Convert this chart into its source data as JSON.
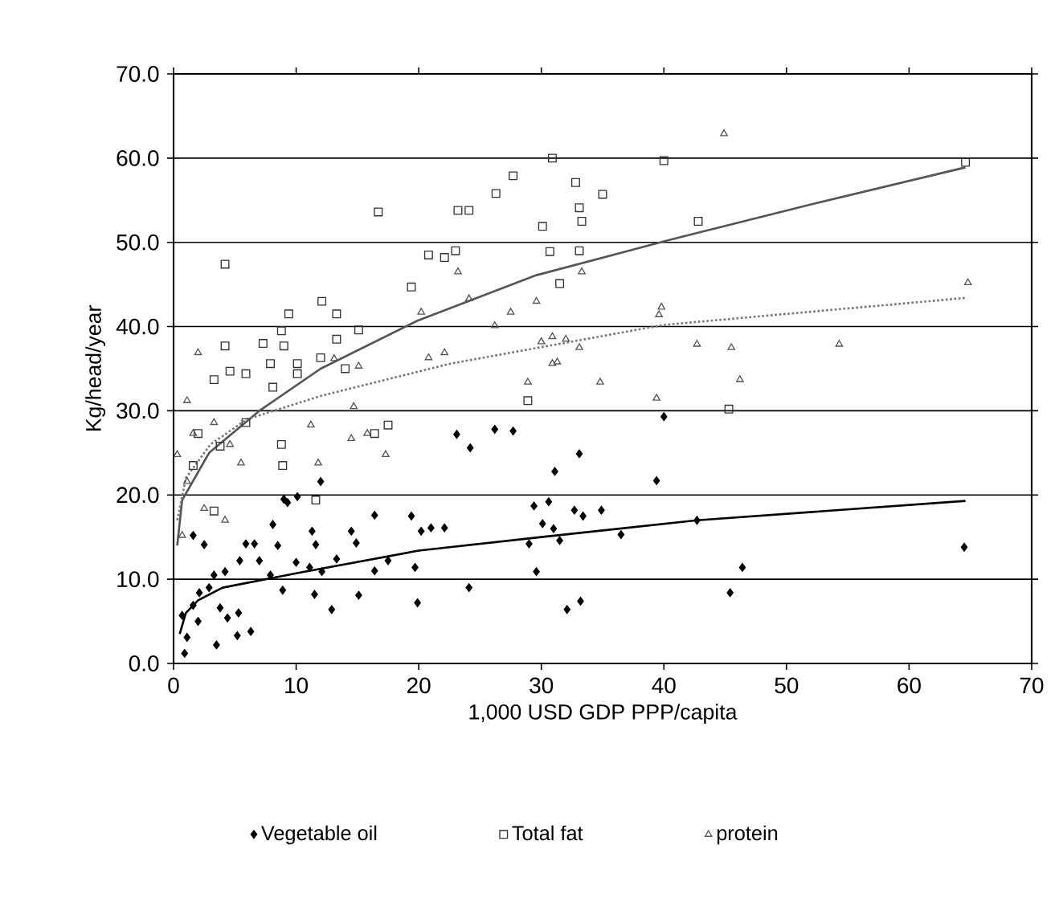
{
  "chart_data": {
    "type": "scatter",
    "xlabel": "1,000 USD GDP PPP/capita",
    "ylabel": "Kg/head/year",
    "xlim": [
      0,
      70
    ],
    "ylim": [
      0,
      70
    ],
    "xticks": [
      0,
      10,
      20,
      30,
      40,
      50,
      60,
      70
    ],
    "yticks": [
      {
        "value": 0,
        "label": "0.0"
      },
      {
        "value": 10,
        "label": "10.0"
      },
      {
        "value": 20,
        "label": "20.0"
      },
      {
        "value": 30,
        "label": "30.0"
      },
      {
        "value": 40,
        "label": "40.0"
      },
      {
        "value": 50,
        "label": "50.0"
      },
      {
        "value": 60,
        "label": "60.0"
      },
      {
        "value": 70,
        "label": "70.0"
      }
    ],
    "grid": "y",
    "legend": "bottom",
    "series": [
      {
        "name": "Vegetable oil",
        "color": "#000000",
        "marker": "diamond",
        "x": [
          23.1,
          24.2,
          26.2,
          27.7,
          33.1,
          31.1,
          39.4,
          40.0,
          29.4,
          30.6,
          32.7,
          33.4,
          34.9,
          30.1,
          31.0,
          29.0,
          31.5,
          36.5,
          42.7,
          29.6,
          24.1,
          32.1,
          33.2,
          45.4,
          46.4,
          64.5,
          12.0,
          16.4,
          19.4,
          20.2,
          21.0,
          22.1,
          9.3,
          9.0,
          10.1,
          8.1,
          11.3,
          11.6,
          14.5,
          14.9,
          5.9,
          6.6,
          7.0,
          5.4,
          8.5,
          10.0,
          11.1,
          12.1,
          13.3,
          16.4,
          17.5,
          19.7,
          7.9,
          8.9,
          11.5,
          12.9,
          15.1,
          19.9,
          4.2,
          3.3,
          5.3,
          6.3,
          5.2,
          3.5,
          4.4,
          3.8,
          2.1,
          2.5,
          1.6,
          2.0,
          1.1,
          0.9,
          1.6,
          0.7,
          2.9
        ],
        "values": [
          27.2,
          25.6,
          27.8,
          27.6,
          24.9,
          22.8,
          21.7,
          29.3,
          18.7,
          19.2,
          18.2,
          17.5,
          18.2,
          16.6,
          16.0,
          14.2,
          14.6,
          15.3,
          17.0,
          10.9,
          9.0,
          6.4,
          7.4,
          8.4,
          11.4,
          13.8,
          21.6,
          17.6,
          17.5,
          15.7,
          16.1,
          16.1,
          19.1,
          19.5,
          19.8,
          16.5,
          15.7,
          14.1,
          15.7,
          14.3,
          14.2,
          14.2,
          12.2,
          12.2,
          14.0,
          12.0,
          11.4,
          10.9,
          12.4,
          11.0,
          12.2,
          11.4,
          10.5,
          8.7,
          8.2,
          6.4,
          8.1,
          7.2,
          10.9,
          10.5,
          6.0,
          3.8,
          3.3,
          2.2,
          5.4,
          6.6,
          8.4,
          14.1,
          15.2,
          5.0,
          3.1,
          1.2,
          6.9,
          5.7,
          9.0
        ]
      },
      {
        "name": "Total fat",
        "color": "#333333",
        "marker": "square",
        "x": [
          4.2,
          16.7,
          23.2,
          24.1,
          20.8,
          22.1,
          19.4,
          12.1,
          13.3,
          9.4,
          15.1,
          8.8,
          13.3,
          4.2,
          7.3,
          9.0,
          7.9,
          10.1,
          12.0,
          14.0,
          4.6,
          3.3,
          5.9,
          8.1,
          10.1,
          30.9,
          27.7,
          26.3,
          32.8,
          35.0,
          33.1,
          33.3,
          30.1,
          40.0,
          42.8,
          64.6,
          30.7,
          33.1,
          31.5,
          23.0,
          28.9,
          45.3,
          17.5,
          16.4,
          8.9,
          11.6,
          8.8,
          5.9,
          3.8,
          2.0,
          1.6,
          3.3
        ],
        "values": [
          47.4,
          53.6,
          53.8,
          53.8,
          48.5,
          48.2,
          44.7,
          43.0,
          41.5,
          41.5,
          39.6,
          39.5,
          38.5,
          37.7,
          38.0,
          37.7,
          35.6,
          35.6,
          36.3,
          35.0,
          34.7,
          33.7,
          34.4,
          32.8,
          34.4,
          60.0,
          57.9,
          55.8,
          57.1,
          55.7,
          54.1,
          52.5,
          51.9,
          59.7,
          52.5,
          59.5,
          48.9,
          49.0,
          45.1,
          49.0,
          31.2,
          30.2,
          28.3,
          27.3,
          23.5,
          19.4,
          26.0,
          28.6,
          25.8,
          27.3,
          23.5,
          18.1
        ]
      },
      {
        "name": "protein",
        "color": "#555555",
        "marker": "triangle",
        "x": [
          2.0,
          20.2,
          20.8,
          22.1,
          24.1,
          23.2,
          15.1,
          13.1,
          14.7,
          1.1,
          33.3,
          29.6,
          27.5,
          26.2,
          39.8,
          39.6,
          64.8,
          42.7,
          45.5,
          46.2,
          34.8,
          28.9,
          31.3,
          33.1,
          30.0,
          30.9,
          32.0,
          39.4,
          44.9,
          54.3,
          30.9,
          11.2,
          11.8,
          17.3,
          14.5,
          15.8,
          5.5,
          4.6,
          3.3,
          1.6,
          1.1,
          2.5,
          4.2,
          0.7,
          0.3
        ],
        "values": [
          36.9,
          41.7,
          36.3,
          36.9,
          43.3,
          46.5,
          35.3,
          36.2,
          30.5,
          31.2,
          46.5,
          43.0,
          41.7,
          40.1,
          42.3,
          41.4,
          45.2,
          37.9,
          37.5,
          33.7,
          33.4,
          33.4,
          35.8,
          37.5,
          38.2,
          38.8,
          38.5,
          31.5,
          62.9,
          37.9,
          35.6,
          28.3,
          23.8,
          24.8,
          26.7,
          27.3,
          23.8,
          26.0,
          28.6,
          27.3,
          21.6,
          18.4,
          17.0,
          15.2,
          24.8
        ]
      },
      {
        "type": "line",
        "color": "#000000",
        "line_style": "solid",
        "x": [
          0.5,
          1,
          2,
          4,
          10,
          20,
          30,
          42.7,
          64.6
        ],
        "values": [
          3.5,
          6,
          7.5,
          9,
          10.7,
          13.4,
          15,
          17,
          19.3
        ]
      },
      {
        "type": "line",
        "color": "#555555",
        "line_style": "solid",
        "x": [
          0.3,
          0.7,
          2.9,
          7,
          12,
          19.9,
          29.6,
          40.5,
          52,
          64.6
        ],
        "values": [
          14,
          19.4,
          25,
          30,
          35,
          40.7,
          46.1,
          50.3,
          54.5,
          58.9
        ]
      },
      {
        "type": "line",
        "color": "#777777",
        "line_style": "dotted",
        "x": [
          0.3,
          1,
          3,
          6,
          12.1,
          22.6,
          40,
          64.6
        ],
        "values": [
          17,
          22,
          26,
          29,
          31.8,
          35.6,
          40.2,
          43.4
        ]
      }
    ]
  }
}
